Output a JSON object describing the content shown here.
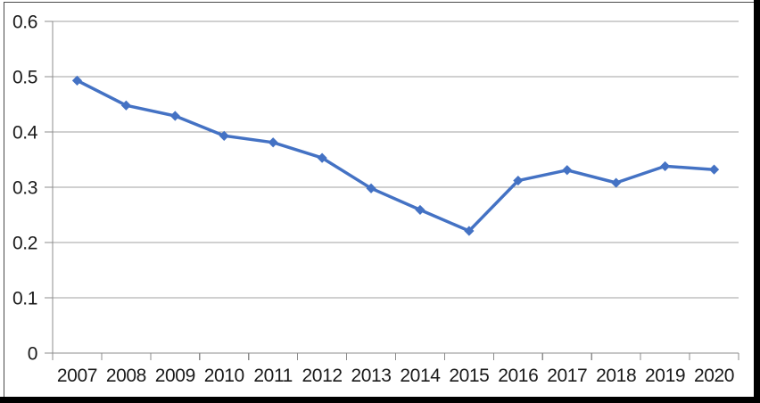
{
  "chart_data": {
    "type": "line",
    "title": "",
    "xlabel": "",
    "ylabel": "",
    "categories": [
      "2007",
      "2008",
      "2009",
      "2010",
      "2011",
      "2012",
      "2013",
      "2014",
      "2015",
      "2016",
      "2017",
      "2018",
      "2019",
      "2020"
    ],
    "series": [
      {
        "name": "series-1",
        "values": [
          0.493,
          0.448,
          0.429,
          0.393,
          0.381,
          0.353,
          0.298,
          0.259,
          0.221,
          0.312,
          0.331,
          0.308,
          0.338,
          0.332
        ],
        "marker": "diamond"
      }
    ],
    "ylim": [
      0,
      0.6
    ],
    "yticks": [
      0,
      0.1,
      0.2,
      0.3,
      0.4,
      0.5,
      0.6
    ],
    "ytick_labels": [
      "0",
      "0.1",
      "0.2",
      "0.3",
      "0.4",
      "0.5",
      "0.6"
    ],
    "grid": "horizontal",
    "legend": "none",
    "colors": {
      "line": "#4472C4",
      "marker": "#4472C4",
      "gridline": "#a0a0a0",
      "axis": "#8c8c8c",
      "tick": "#8c8c8c",
      "text": "#1a1a1a",
      "frame_thin": "#4a4a4a",
      "frame_thick": "#000000",
      "background": "#ffffff"
    }
  }
}
